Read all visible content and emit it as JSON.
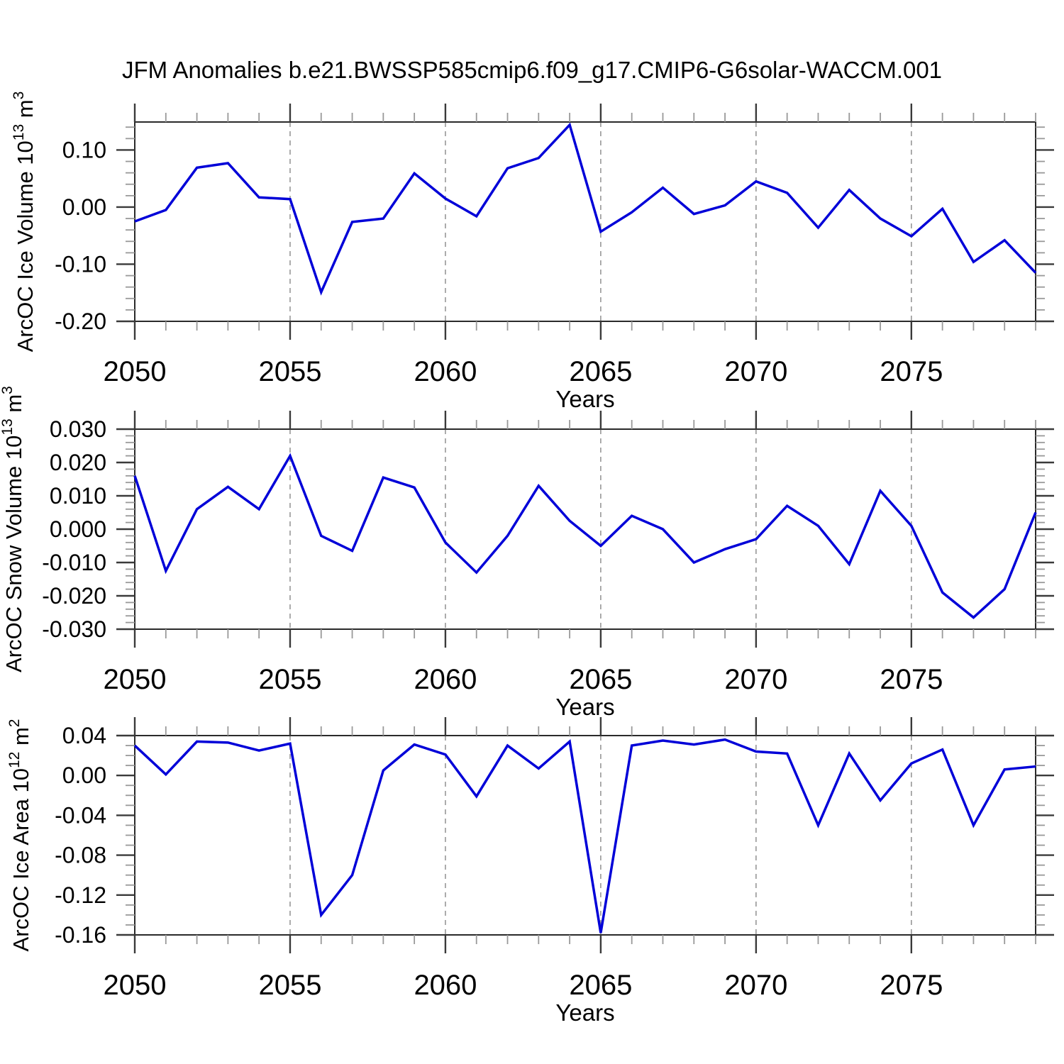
{
  "page_title": "JFM Anomalies b.e21.BWSSP585cmip6.f09_g17.CMIP6-G6solar-WACCM.001",
  "colors": {
    "line": "#0000d8",
    "grid": "#909090",
    "axis": "#2a2a2a",
    "text": "#000000",
    "background": "#ffffff"
  },
  "x_axis": {
    "label": "Years",
    "start": 2050,
    "end": 2079,
    "major_ticks": [
      2050,
      2055,
      2060,
      2065,
      2070,
      2075
    ],
    "minor_step": 1,
    "grid_years": [
      2055,
      2060,
      2065,
      2070,
      2075
    ]
  },
  "chart_data": [
    {
      "type": "line",
      "id": "ice-volume",
      "ylabel": "ArcOC Ice Volume 10^13 m^3",
      "ylabel_parts": [
        {
          "t": "ArcOC Ice Volume 10"
        },
        {
          "t": "13",
          "sup": true
        },
        {
          "t": " m"
        },
        {
          "t": "3",
          "sup": true
        }
      ],
      "xlabel": "Years",
      "ylim": [
        -0.2,
        0.149
      ],
      "ymajor_step": 0.1,
      "yminor_step": 0.02,
      "ytick_values": [
        0.1,
        0.0,
        -0.1,
        -0.2
      ],
      "ytick_labels": [
        "0.10",
        "0.00",
        "-0.10",
        "-0.20"
      ],
      "x": [
        2050,
        2051,
        2052,
        2053,
        2054,
        2055,
        2056,
        2057,
        2058,
        2059,
        2060,
        2061,
        2062,
        2063,
        2064,
        2065,
        2066,
        2067,
        2068,
        2069,
        2070,
        2071,
        2072,
        2073,
        2074,
        2075,
        2076,
        2077,
        2078,
        2079
      ],
      "values": [
        -0.025,
        -0.005,
        0.069,
        0.077,
        0.017,
        0.014,
        -0.149,
        -0.026,
        -0.02,
        0.059,
        0.015,
        -0.016,
        0.068,
        0.086,
        0.144,
        -0.043,
        -0.009,
        0.034,
        -0.012,
        0.003,
        0.045,
        0.025,
        -0.036,
        0.03,
        -0.02,
        -0.051,
        -0.003,
        -0.096,
        -0.058,
        -0.115
      ]
    },
    {
      "type": "line",
      "id": "snow-volume",
      "ylabel": "ArcOC Snow Volume 10^13 m^3",
      "ylabel_parts": [
        {
          "t": "ArcOC Snow Volume 10"
        },
        {
          "t": "13",
          "sup": true
        },
        {
          "t": " m"
        },
        {
          "t": "3",
          "sup": true
        }
      ],
      "xlabel": "Years",
      "ylim": [
        -0.03,
        0.03
      ],
      "ymajor_step": 0.01,
      "yminor_step": 0.002,
      "ytick_values": [
        0.03,
        0.02,
        0.01,
        0.0,
        -0.01,
        -0.02,
        -0.03
      ],
      "ytick_labels": [
        "0.030",
        "0.020",
        "0.010",
        "0.000",
        "-0.010",
        "-0.020",
        "-0.030"
      ],
      "x": [
        2050,
        2051,
        2052,
        2053,
        2054,
        2055,
        2056,
        2057,
        2058,
        2059,
        2060,
        2061,
        2062,
        2063,
        2064,
        2065,
        2066,
        2067,
        2068,
        2069,
        2070,
        2071,
        2072,
        2073,
        2074,
        2075,
        2076,
        2077,
        2078,
        2079
      ],
      "values": [
        0.016,
        -0.0125,
        0.006,
        0.0127,
        0.006,
        0.022,
        -0.002,
        -0.0065,
        0.0155,
        0.0125,
        -0.004,
        -0.013,
        -0.002,
        0.013,
        0.0025,
        -0.005,
        0.004,
        0.0,
        -0.01,
        -0.006,
        -0.003,
        0.007,
        0.001,
        -0.0105,
        0.0115,
        0.001,
        -0.019,
        -0.0265,
        -0.018,
        0.005
      ]
    },
    {
      "type": "line",
      "id": "ice-area",
      "ylabel": "ArcOC Ice Area 10^12 m^2",
      "ylabel_parts": [
        {
          "t": "ArcOC Ice Area 10"
        },
        {
          "t": "12",
          "sup": true
        },
        {
          "t": " m"
        },
        {
          "t": "2",
          "sup": true
        }
      ],
      "xlabel": "Years",
      "ylim": [
        -0.16,
        0.04
      ],
      "ymajor_step": 0.04,
      "yminor_step": 0.01,
      "ytick_values": [
        0.04,
        0.0,
        -0.04,
        -0.08,
        -0.12,
        -0.16
      ],
      "ytick_labels": [
        "0.04",
        "0.00",
        "-0.04",
        "-0.08",
        "-0.12",
        "-0.16"
      ],
      "x": [
        2050,
        2051,
        2052,
        2053,
        2054,
        2055,
        2056,
        2057,
        2058,
        2059,
        2060,
        2061,
        2062,
        2063,
        2064,
        2065,
        2066,
        2067,
        2068,
        2069,
        2070,
        2071,
        2072,
        2073,
        2074,
        2075,
        2076,
        2077,
        2078,
        2079
      ],
      "values": [
        0.03,
        0.001,
        0.034,
        0.033,
        0.025,
        0.032,
        -0.14,
        -0.1,
        0.005,
        0.031,
        0.021,
        -0.021,
        0.03,
        0.007,
        0.034,
        -0.158,
        0.03,
        0.035,
        0.031,
        0.036,
        0.024,
        0.022,
        -0.05,
        0.022,
        -0.025,
        0.012,
        0.026,
        -0.05,
        0.006,
        0.009
      ]
    }
  ]
}
